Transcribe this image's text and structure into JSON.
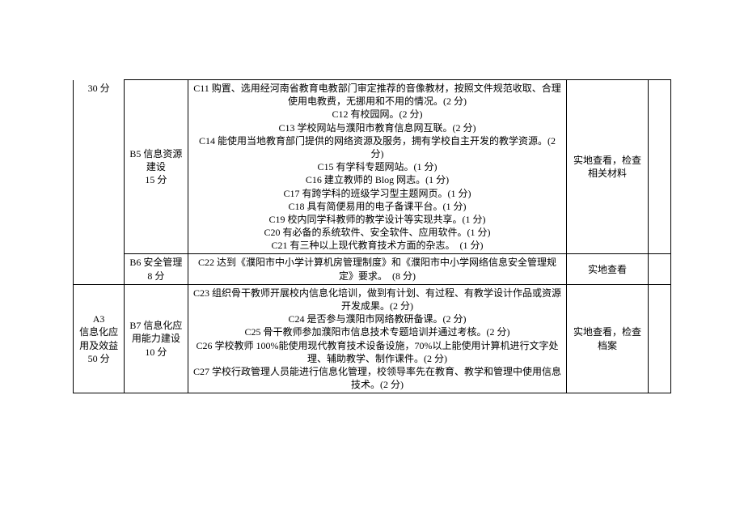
{
  "section_A_prev": {
    "label": "30 分"
  },
  "section_B5": {
    "label": "B5 信息资源建设",
    "points": "15 分"
  },
  "section_B5_criteria": [
    "C11 购置、选用经河南省教育电教部门审定推荐的音像教材，按照文件规范收取、合理使用电教费，无挪用和不用的情况。(2 分)",
    "C12 有校园网。(2 分)",
    "C13 学校网站与濮阳市教育信息网互联。(2 分)",
    "C14 能使用当地教育部门提供的网络资源及服务，拥有学校自主开发的教学资源。(2 分)",
    "C15 有学科专题网站。(1 分)",
    "C16 建立教师的 Blog 网志。(1 分)",
    "C17 有跨学科的班级学习型主题网页。(1 分)",
    "C18 具有简便易用的电子备课平台。(1 分)",
    "C19 校内同学科教师的教学设计等实现共享。(1 分)",
    "C20 有必备的系统软件、安全软件、应用软件。(1 分)",
    "C21 有三种以上现代教育技术方面的杂志。　(1 分)"
  ],
  "section_B5_method": "实地查看，检查相关材料",
  "section_B6": {
    "label": "B6 安全管理",
    "points": "8 分"
  },
  "section_B6_criteria": [
    "C22 达到《濮阳市中小学计算机房管理制度》和《濮阳市中小学网络信息安全管理规定》要求。　(8 分)"
  ],
  "section_B6_method": "实地查看",
  "section_A3": {
    "line1": "A3",
    "line2": "信息化应用及效益",
    "points": "50 分"
  },
  "section_B7": {
    "label": "B7 信息化应用能力建设",
    "points": "10 分"
  },
  "section_B7_criteria": [
    "C23 组织骨干教师开展校内信息化培训，做到有计划、有过程、有教学设计作品或资源开发成果。(2 分)",
    "C24 是否参与濮阳市网络教研备课。(2 分)",
    "C25 骨干教师参加濮阳市信息技术专题培训并通过考核。(2 分)",
    "C26 学校教师 100%能使用现代教育技术设备设施，70%以上能使用计算机进行文字处理、辅助教学、制作课件。(2 分)",
    "C27 学校行政管理人员能进行信息化管理，校领导率先在教育、教学和管理中使用信息技术。(2 分)"
  ],
  "section_B7_method": "实地查看，检查档案"
}
